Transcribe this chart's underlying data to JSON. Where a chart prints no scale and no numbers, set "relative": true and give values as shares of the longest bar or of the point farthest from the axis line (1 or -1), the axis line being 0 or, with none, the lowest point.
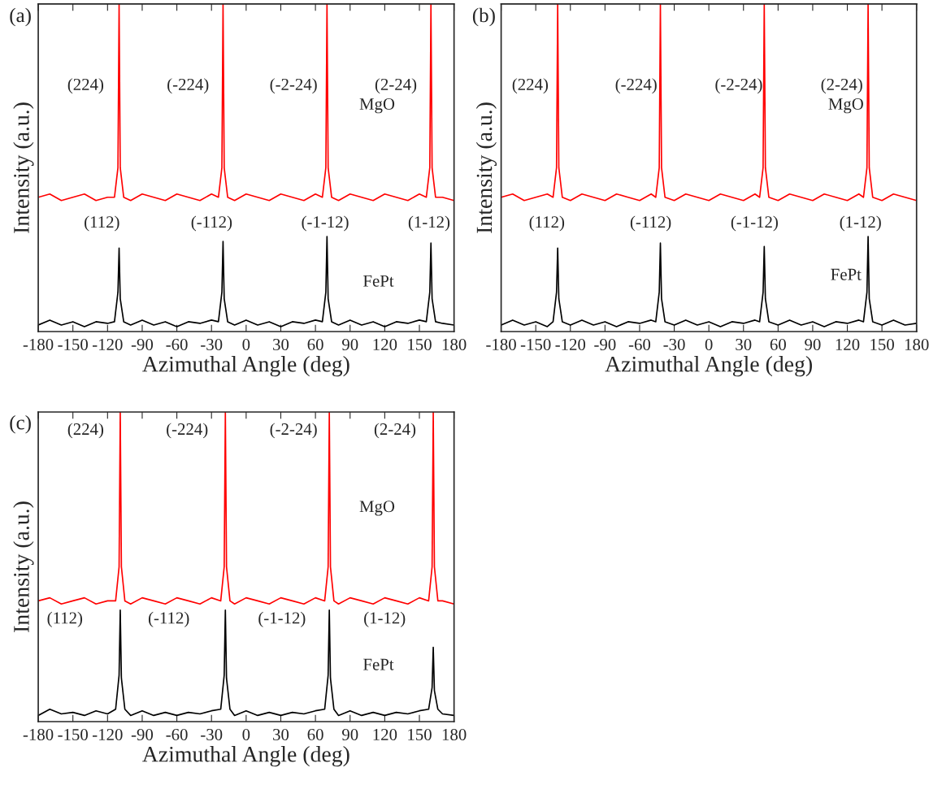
{
  "chart_data": [
    {
      "type": "line",
      "title": "(a)",
      "xlabel": "Azimuthal Angle (deg)",
      "ylabel": "Intensity (a.u.)",
      "relative": true,
      "grid": false,
      "legend": false,
      "xlim": [
        -180,
        180
      ],
      "xticks": [
        -180,
        -150,
        -120,
        -90,
        -60,
        -30,
        0,
        30,
        60,
        90,
        120,
        150,
        180
      ],
      "x": [
        -180,
        -170,
        -160,
        -150,
        -140,
        -130,
        -120,
        -114,
        -111,
        -110,
        -109,
        -106,
        -100,
        -90,
        -80,
        -70,
        -60,
        -50,
        -40,
        -30,
        -24,
        -21,
        -20,
        -19,
        -16,
        -10,
        0,
        10,
        20,
        30,
        40,
        50,
        60,
        66,
        69,
        70,
        71,
        74,
        80,
        90,
        100,
        110,
        120,
        130,
        140,
        150,
        156,
        159,
        160,
        161,
        164,
        170,
        180
      ],
      "series": [
        {
          "color": "#ff0000",
          "values": [
            0.41,
            0.42,
            0.4,
            0.41,
            0.42,
            0.4,
            0.41,
            0.41,
            0.5,
            1,
            0.5,
            0.41,
            0.4,
            0.42,
            0.41,
            0.4,
            0.42,
            0.41,
            0.4,
            0.42,
            0.41,
            0.5,
            1,
            0.5,
            0.41,
            0.4,
            0.42,
            0.41,
            0.4,
            0.42,
            0.41,
            0.4,
            0.42,
            0.41,
            0.5,
            1,
            0.5,
            0.41,
            0.4,
            0.42,
            0.41,
            0.4,
            0.42,
            0.41,
            0.4,
            0.42,
            0.41,
            0.5,
            1,
            0.5,
            0.41,
            0.41,
            0.4
          ]
        },
        {
          "color": "#000000",
          "values": [
            0.02,
            0.035,
            0.02,
            0.03,
            0.015,
            0.03,
            0.025,
            0.03,
            0.12,
            0.255,
            0.1,
            0.03,
            0.02,
            0.035,
            0.02,
            0.03,
            0.015,
            0.03,
            0.025,
            0.035,
            0.03,
            0.12,
            0.275,
            0.1,
            0.03,
            0.02,
            0.035,
            0.02,
            0.03,
            0.015,
            0.03,
            0.025,
            0.035,
            0.03,
            0.12,
            0.29,
            0.1,
            0.03,
            0.02,
            0.035,
            0.02,
            0.03,
            0.015,
            0.03,
            0.025,
            0.035,
            0.03,
            0.12,
            0.27,
            0.1,
            0.03,
            0.025,
            0.02
          ]
        }
      ],
      "annotations": [
        "(224)",
        "(-224)",
        "(-2-24)",
        "(2-24)",
        "MgO",
        "(112)",
        "(-112)",
        "(-1-12)",
        "(1-12)",
        "FePt"
      ]
    },
    {
      "type": "line",
      "title": "(b)",
      "xlabel": "Azimuthal Angle (deg)",
      "ylabel": "Intensity (a.u.)",
      "relative": true,
      "grid": false,
      "legend": false,
      "xlim": [
        -180,
        180
      ],
      "xticks": [
        -180,
        -150,
        -120,
        -90,
        -60,
        -30,
        0,
        30,
        60,
        90,
        120,
        150,
        180
      ],
      "x": [
        -180,
        -170,
        -160,
        -150,
        -140,
        -135,
        -132,
        -131,
        -130,
        -127,
        -120,
        -110,
        -100,
        -90,
        -80,
        -70,
        -60,
        -50,
        -46,
        -43,
        -42,
        -41,
        -38,
        -30,
        -20,
        -10,
        0,
        10,
        20,
        30,
        40,
        44,
        47,
        48,
        49,
        52,
        60,
        70,
        80,
        90,
        100,
        110,
        120,
        130,
        134,
        137,
        138,
        139,
        142,
        150,
        160,
        170,
        180
      ],
      "series": [
        {
          "color": "#ff0000",
          "values": [
            0.41,
            0.42,
            0.4,
            0.41,
            0.42,
            0.41,
            0.5,
            1,
            0.5,
            0.41,
            0.4,
            0.42,
            0.41,
            0.4,
            0.42,
            0.41,
            0.4,
            0.42,
            0.41,
            0.5,
            1,
            0.5,
            0.41,
            0.4,
            0.42,
            0.41,
            0.4,
            0.42,
            0.41,
            0.4,
            0.42,
            0.41,
            0.5,
            1,
            0.5,
            0.41,
            0.4,
            0.42,
            0.41,
            0.4,
            0.42,
            0.41,
            0.4,
            0.42,
            0.41,
            0.5,
            1,
            0.5,
            0.41,
            0.4,
            0.42,
            0.41,
            0.4
          ]
        },
        {
          "color": "#000000",
          "values": [
            0.02,
            0.035,
            0.02,
            0.03,
            0.015,
            0.03,
            0.12,
            0.255,
            0.1,
            0.03,
            0.02,
            0.035,
            0.02,
            0.03,
            0.015,
            0.03,
            0.025,
            0.035,
            0.03,
            0.12,
            0.27,
            0.1,
            0.03,
            0.02,
            0.035,
            0.02,
            0.03,
            0.015,
            0.03,
            0.025,
            0.035,
            0.03,
            0.12,
            0.26,
            0.1,
            0.03,
            0.02,
            0.035,
            0.02,
            0.03,
            0.015,
            0.03,
            0.025,
            0.035,
            0.03,
            0.12,
            0.29,
            0.1,
            0.03,
            0.02,
            0.035,
            0.02,
            0.025
          ]
        }
      ],
      "annotations": [
        "(224)",
        "(-224)",
        "(-2-24)",
        "(2-24)",
        "MgO",
        "(112)",
        "(-112)",
        "(-1-12)",
        "(1-12)",
        "FePt"
      ]
    },
    {
      "type": "line",
      "title": "(c)",
      "xlabel": "Azimuthal Angle (deg)",
      "ylabel": "Intensity (a.u.)",
      "relative": true,
      "grid": false,
      "legend": false,
      "xlim": [
        -180,
        180
      ],
      "xticks": [
        -180,
        -150,
        -120,
        -90,
        -60,
        -30,
        0,
        30,
        60,
        90,
        120,
        150,
        180
      ],
      "x": [
        -180,
        -170,
        -160,
        -150,
        -140,
        -130,
        -120,
        -113,
        -110,
        -109,
        -108,
        -105,
        -100,
        -90,
        -80,
        -70,
        -60,
        -50,
        -40,
        -30,
        -22,
        -19,
        -18,
        -17,
        -14,
        -10,
        0,
        10,
        20,
        30,
        40,
        50,
        60,
        68,
        71,
        72,
        73,
        76,
        80,
        90,
        100,
        110,
        120,
        130,
        140,
        150,
        158,
        161,
        162,
        163,
        166,
        170,
        180
      ],
      "series": [
        {
          "color": "#ff0000",
          "values": [
            0.39,
            0.4,
            0.38,
            0.39,
            0.4,
            0.38,
            0.39,
            0.39,
            0.5,
            1,
            0.5,
            0.39,
            0.38,
            0.4,
            0.39,
            0.38,
            0.4,
            0.39,
            0.38,
            0.4,
            0.39,
            0.5,
            1,
            0.5,
            0.39,
            0.38,
            0.4,
            0.39,
            0.38,
            0.4,
            0.39,
            0.38,
            0.4,
            0.39,
            0.5,
            1,
            0.5,
            0.39,
            0.38,
            0.4,
            0.39,
            0.38,
            0.4,
            0.39,
            0.38,
            0.4,
            0.39,
            0.5,
            1,
            0.5,
            0.39,
            0.39,
            0.38
          ]
        },
        {
          "color": "#000000",
          "values": [
            0.02,
            0.04,
            0.025,
            0.03,
            0.02,
            0.035,
            0.025,
            0.04,
            0.15,
            0.36,
            0.14,
            0.04,
            0.02,
            0.035,
            0.02,
            0.03,
            0.02,
            0.03,
            0.025,
            0.035,
            0.04,
            0.15,
            0.36,
            0.14,
            0.04,
            0.02,
            0.035,
            0.02,
            0.03,
            0.02,
            0.03,
            0.025,
            0.035,
            0.04,
            0.15,
            0.36,
            0.14,
            0.04,
            0.02,
            0.035,
            0.02,
            0.03,
            0.02,
            0.03,
            0.025,
            0.035,
            0.04,
            0.11,
            0.24,
            0.1,
            0.04,
            0.025,
            0.02
          ]
        }
      ],
      "annotations": [
        "(224)",
        "(-224)",
        "(-2-24)",
        "(2-24)",
        "MgO",
        "(112)",
        "(-112)",
        "(-1-12)",
        "(1-12)",
        "FePt"
      ]
    }
  ]
}
